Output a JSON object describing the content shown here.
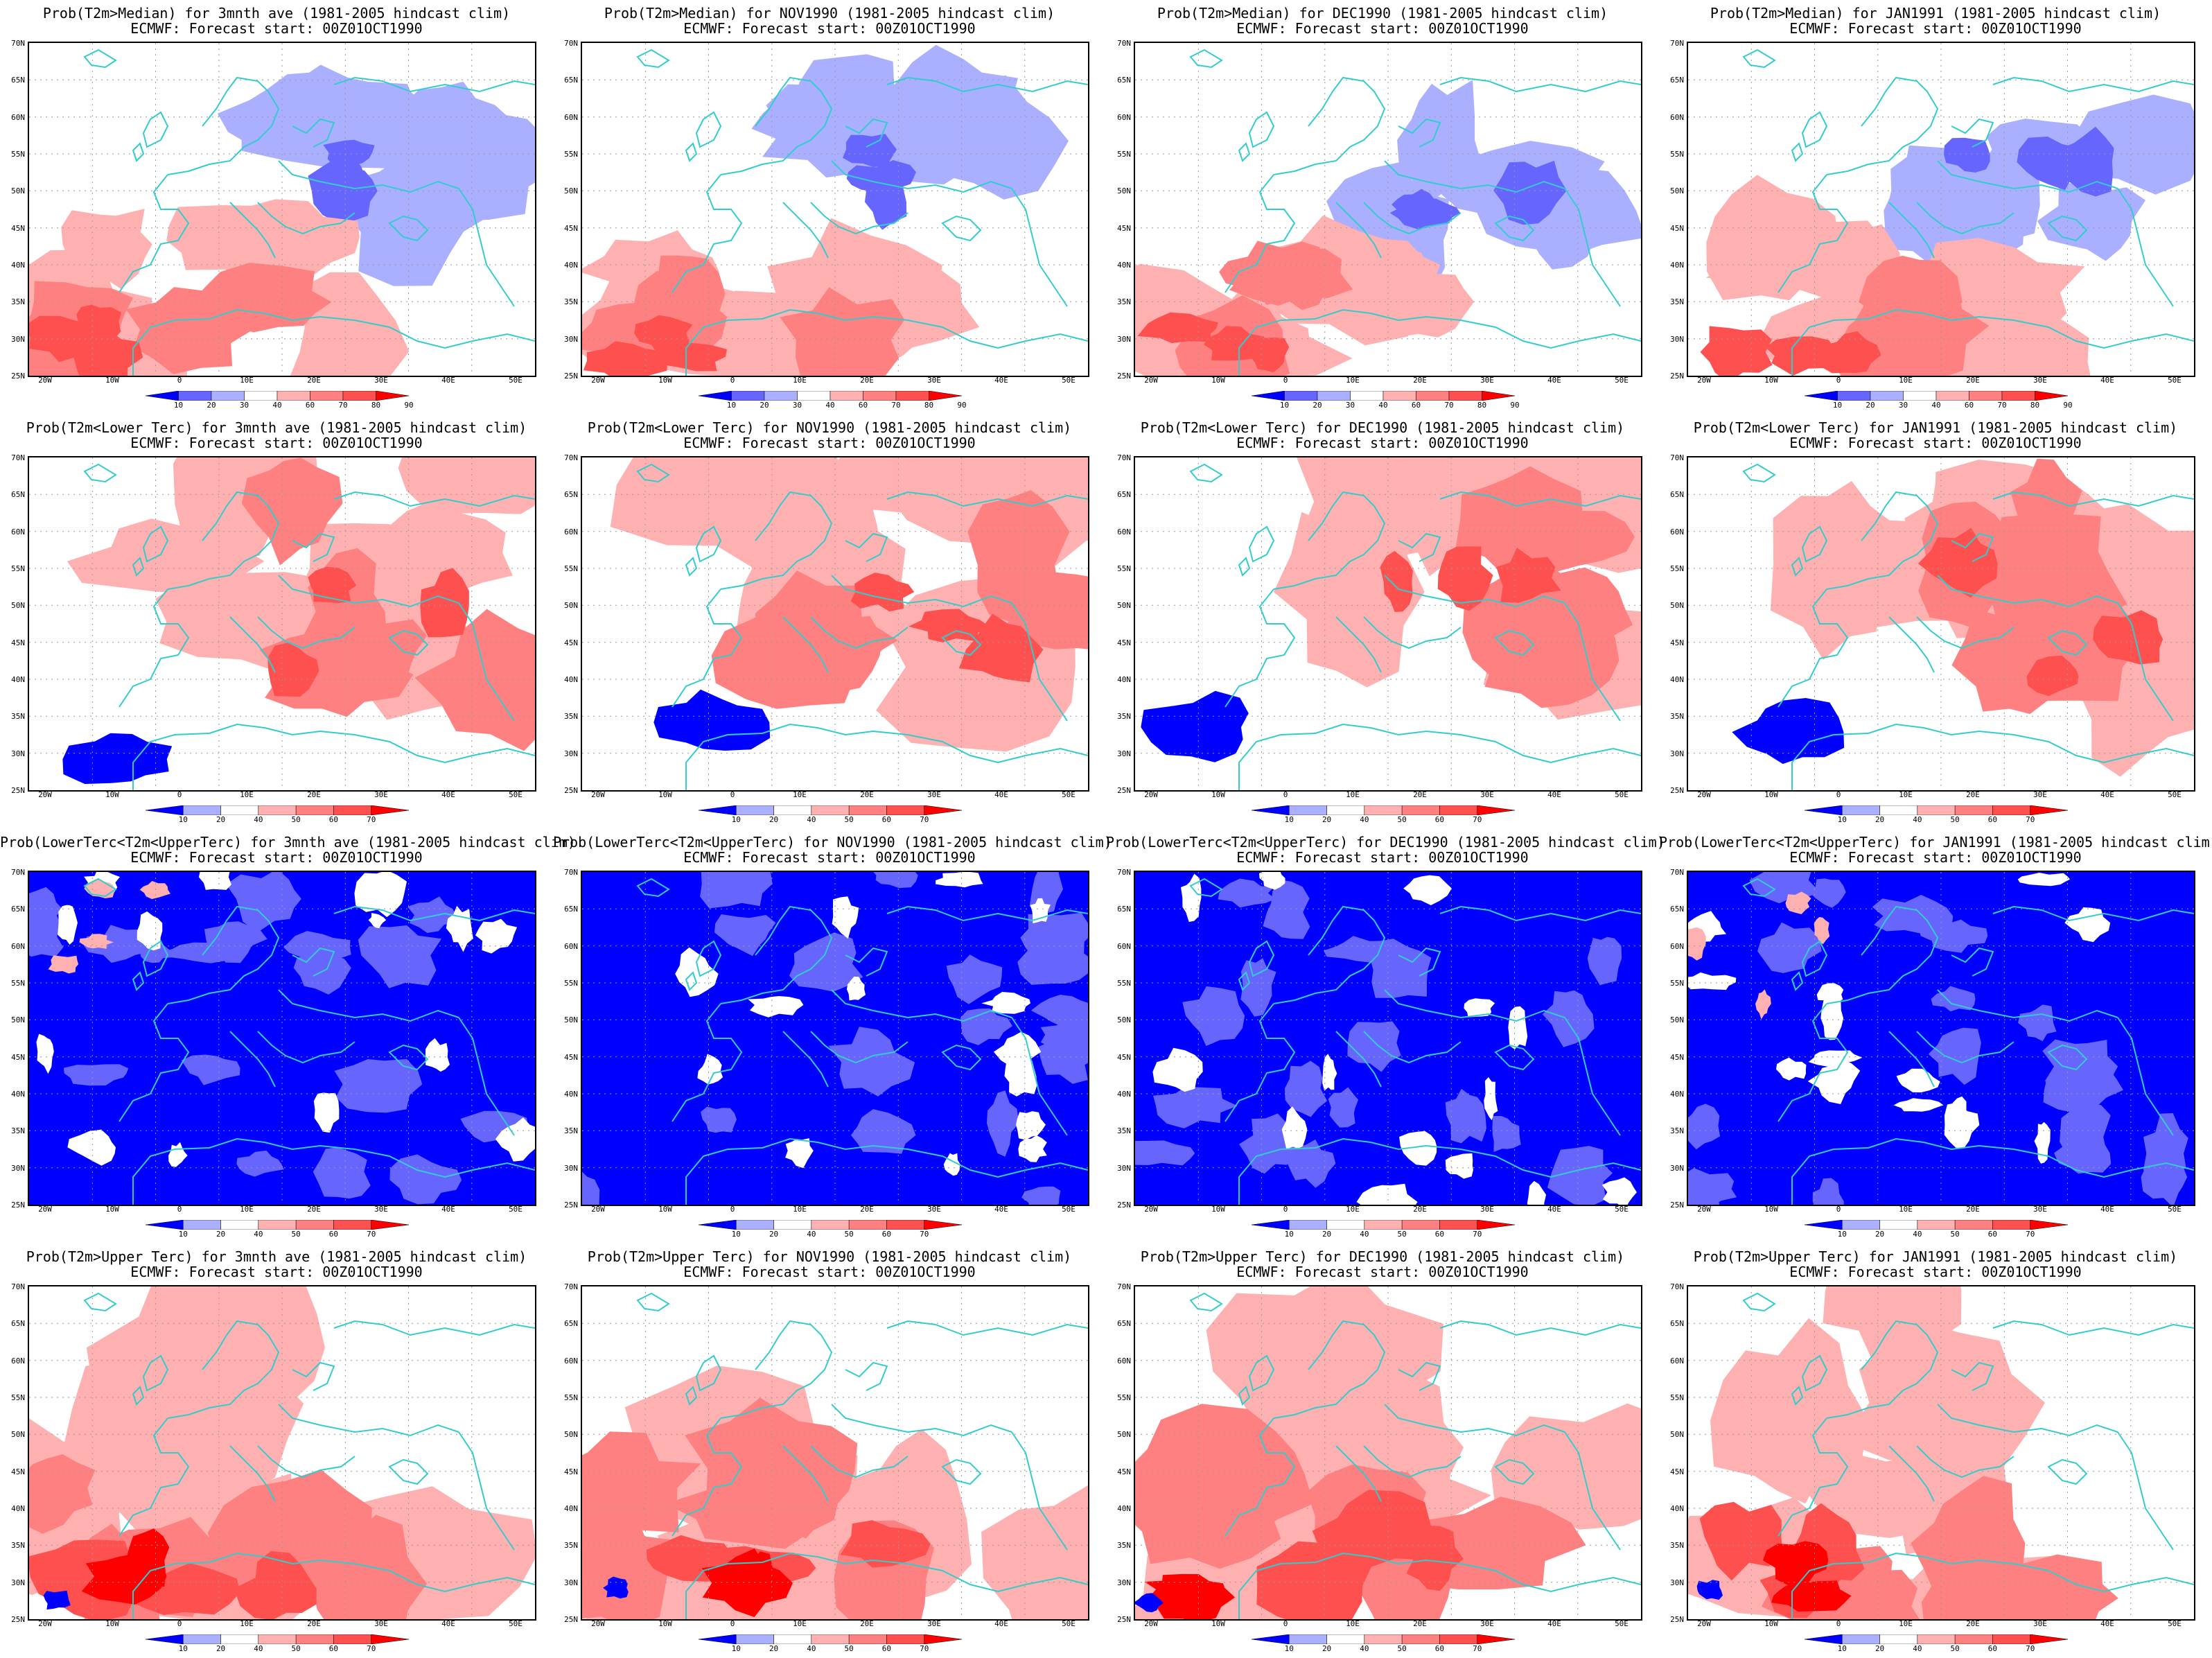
{
  "figure": {
    "forecast_line": "ECMWF: Forecast start: 00Z01OCT1990",
    "lat_labels": [
      "70N",
      "65N",
      "60N",
      "55N",
      "50N",
      "45N",
      "40N",
      "35N",
      "30N",
      "25N"
    ],
    "lon_labels": [
      "20W",
      "10W",
      "0",
      "10E",
      "20E",
      "30E",
      "40E",
      "50E"
    ],
    "colors": {
      "blue3": "#0000ff",
      "blue2": "#6666ff",
      "blue1": "#aab0ff",
      "red1": "#ffb0b0",
      "red2": "#ff8080",
      "red3": "#ff5050",
      "red4": "#ff0000",
      "coast": "#33cccc"
    }
  },
  "rows": [
    {
      "colorbar_labels": [
        "10",
        "20",
        "30",
        "40",
        "60",
        "70",
        "80",
        "90"
      ],
      "panels": [
        {
          "title": "Prob(T2m>Median) for 3mnth ave (1981-2005 hindcast clim)"
        },
        {
          "title": "Prob(T2m>Median) for NOV1990 (1981-2005 hindcast clim)"
        },
        {
          "title": "Prob(T2m>Median) for DEC1990 (1981-2005 hindcast clim)"
        },
        {
          "title": "Prob(T2m>Median) for JAN1991 (1981-2005 hindcast clim)"
        }
      ]
    },
    {
      "colorbar_labels": [
        "10",
        "20",
        "40",
        "50",
        "60",
        "70"
      ],
      "panels": [
        {
          "title": "Prob(T2m<Lower Terc) for 3mnth ave (1981-2005 hindcast clim)"
        },
        {
          "title": "Prob(T2m<Lower Terc) for NOV1990 (1981-2005 hindcast clim)"
        },
        {
          "title": "Prob(T2m<Lower Terc) for DEC1990 (1981-2005 hindcast clim)"
        },
        {
          "title": "Prob(T2m<Lower Terc) for JAN1991 (1981-2005 hindcast clim)"
        }
      ]
    },
    {
      "colorbar_labels": [
        "10",
        "20",
        "40",
        "50",
        "60",
        "70"
      ],
      "panels": [
        {
          "title": "Prob(LowerTerc<T2m<UpperTerc) for 3mnth ave (1981-2005 hindcast clim)"
        },
        {
          "title": "Prob(LowerTerc<T2m<UpperTerc) for NOV1990 (1981-2005 hindcast clim)"
        },
        {
          "title": "Prob(LowerTerc<T2m<UpperTerc) for DEC1990 (1981-2005 hindcast clim)"
        },
        {
          "title": "Prob(LowerTerc<T2m<UpperTerc) for JAN1991 (1981-2005 hindcast clim)"
        }
      ]
    },
    {
      "colorbar_labels": [
        "10",
        "20",
        "40",
        "50",
        "60",
        "70"
      ],
      "panels": [
        {
          "title": "Prob(T2m>Upper Terc) for 3mnth ave (1981-2005 hindcast clim)"
        },
        {
          "title": "Prob(T2m>Upper Terc) for NOV1990 (1981-2005 hindcast clim)"
        },
        {
          "title": "Prob(T2m>Upper Terc) for DEC1990 (1981-2005 hindcast clim)"
        },
        {
          "title": "Prob(T2m>Upper Terc) for JAN1991 (1981-2005 hindcast clim)"
        }
      ]
    }
  ]
}
